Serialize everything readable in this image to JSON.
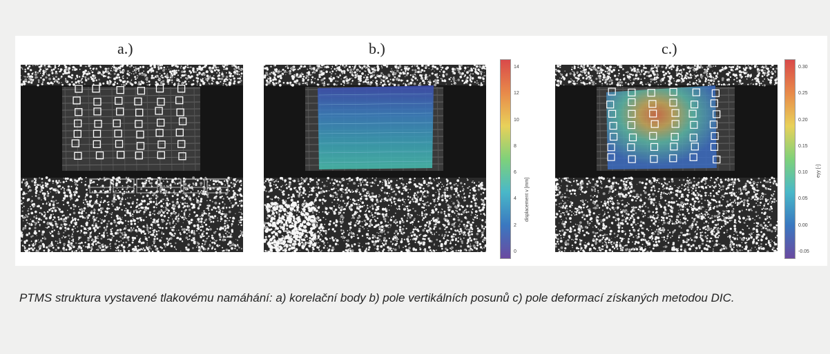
{
  "figure": {
    "panels": [
      {
        "label": "a.)"
      },
      {
        "label": "b.)"
      },
      {
        "label": "c.)"
      }
    ],
    "colorbar_b": {
      "ticks": [
        "14",
        "12",
        "10",
        "8",
        "6",
        "4",
        "2",
        "0"
      ],
      "label": "displacement v [mm]",
      "colors": [
        "#d94a4a",
        "#e88a4a",
        "#e8d15a",
        "#7fd17a",
        "#49b8c8",
        "#3a78c0",
        "#6a4aa0"
      ]
    },
    "colorbar_c": {
      "ticks": [
        "0.30",
        "0.25",
        "0.20",
        "0.15",
        "0.10",
        "0.05",
        "0.00",
        "-0.05"
      ],
      "label": "eyy [-]",
      "colors": [
        "#d94a4a",
        "#e88a4a",
        "#e8d15a",
        "#7fd17a",
        "#49b8c8",
        "#3a78c0",
        "#6a4aa0"
      ]
    }
  },
  "caption": "PTMS struktura vystavené tlakovému namáhání: a) korelační body b) pole vertikálních posunů c) pole deformací získaných metodou DIC."
}
